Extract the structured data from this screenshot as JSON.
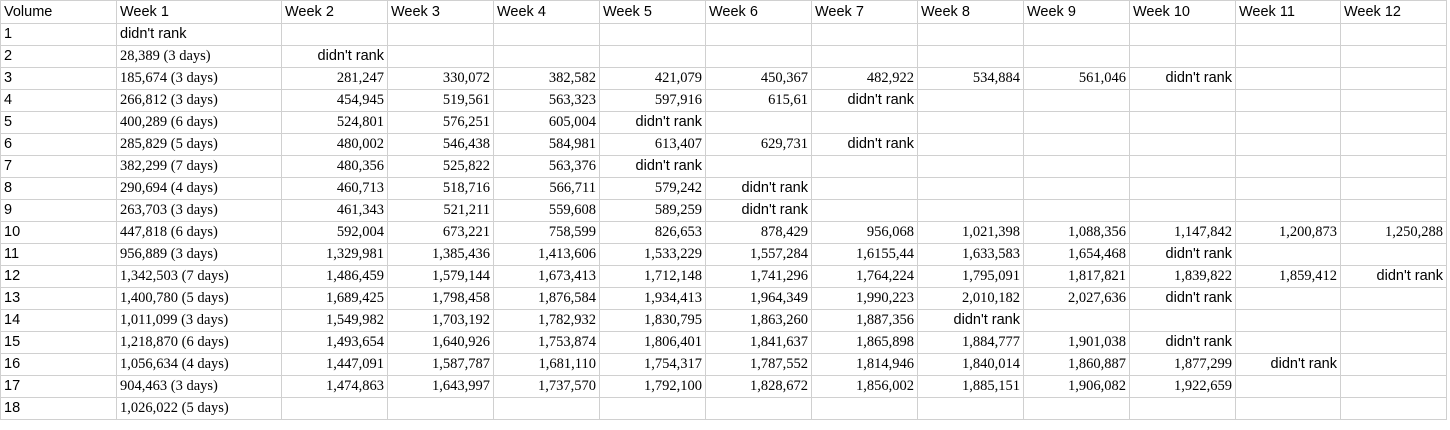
{
  "columns": [
    "Volume",
    "Week 1",
    "Week 2",
    "Week 3",
    "Week 4",
    "Week 5",
    "Week 6",
    "Week 7",
    "Week 8",
    "Week 9",
    "Week 10",
    "Week 11",
    "Week 12"
  ],
  "rows": [
    [
      "1",
      "didn't rank",
      "",
      "",
      "",
      "",
      "",
      "",
      "",
      "",
      "",
      "",
      ""
    ],
    [
      "2",
      "28,389 (3 days)",
      "didn't rank",
      "",
      "",
      "",
      "",
      "",
      "",
      "",
      "",
      "",
      ""
    ],
    [
      "3",
      "185,674 (3 days)",
      "281,247",
      "330,072",
      "382,582",
      "421,079",
      "450,367",
      "482,922",
      "534,884",
      "561,046",
      "didn't rank",
      "",
      ""
    ],
    [
      "4",
      "266,812 (3 days)",
      "454,945",
      "519,561",
      "563,323",
      "597,916",
      "615,61",
      "didn't rank",
      "",
      "",
      "",
      "",
      ""
    ],
    [
      "5",
      "400,289 (6 days)",
      "524,801",
      "576,251",
      "605,004",
      "didn't rank",
      "",
      "",
      "",
      "",
      "",
      "",
      ""
    ],
    [
      "6",
      "285,829 (5 days)",
      "480,002",
      "546,438",
      "584,981",
      "613,407",
      "629,731",
      "didn't rank",
      "",
      "",
      "",
      "",
      ""
    ],
    [
      "7",
      "382,299 (7 days)",
      "480,356",
      "525,822",
      "563,376",
      "didn't rank",
      "",
      "",
      "",
      "",
      "",
      "",
      ""
    ],
    [
      "8",
      "290,694 (4 days)",
      "460,713",
      "518,716",
      "566,711",
      "579,242",
      "didn't rank",
      "",
      "",
      "",
      "",
      "",
      ""
    ],
    [
      "9",
      "263,703 (3 days)",
      "461,343",
      "521,211",
      "559,608",
      "589,259",
      "didn't rank",
      "",
      "",
      "",
      "",
      "",
      ""
    ],
    [
      "10",
      "447,818 (6 days)",
      "592,004",
      "673,221",
      "758,599",
      "826,653",
      "878,429",
      "956,068",
      "1,021,398",
      "1,088,356",
      "1,147,842",
      "1,200,873",
      "1,250,288"
    ],
    [
      "11",
      "956,889 (3 days)",
      "1,329,981",
      "1,385,436",
      "1,413,606",
      "1,533,229",
      "1,557,284",
      "1,6155,44",
      "1,633,583",
      "1,654,468",
      "didn't rank",
      "",
      ""
    ],
    [
      "12",
      "1,342,503 (7 days)",
      "1,486,459",
      "1,579,144",
      "1,673,413",
      "1,712,148",
      "1,741,296",
      "1,764,224",
      "1,795,091",
      "1,817,821",
      "1,839,822",
      "1,859,412",
      "didn't rank"
    ],
    [
      "13",
      "1,400,780 (5 days)",
      "1,689,425",
      "1,798,458",
      "1,876,584",
      "1,934,413",
      "1,964,349",
      "1,990,223",
      "2,010,182",
      "2,027,636",
      "didn't rank",
      "",
      ""
    ],
    [
      "14",
      "1,011,099 (3 days)",
      "1,549,982",
      "1,703,192",
      "1,782,932",
      "1,830,795",
      "1,863,260",
      "1,887,356",
      "didn't rank",
      "",
      "",
      "",
      ""
    ],
    [
      "15",
      "1,218,870 (6 days)",
      "1,493,654",
      "1,640,926",
      "1,753,874",
      "1,806,401",
      "1,841,637",
      "1,865,898",
      "1,884,777",
      "1,901,038",
      "didn't rank",
      "",
      ""
    ],
    [
      "16",
      "1,056,634 (4 days)",
      "1,447,091",
      "1,587,787",
      "1,681,110",
      "1,754,317",
      "1,787,552",
      "1,814,946",
      "1,840,014",
      "1,860,887",
      "1,877,299",
      "didn't rank",
      ""
    ],
    [
      "17",
      "904,463 (3 days)",
      "1,474,863",
      "1,643,997",
      "1,737,570",
      "1,792,100",
      "1,828,672",
      "1,856,002",
      "1,885,151",
      "1,906,082",
      "1,922,659",
      "",
      ""
    ],
    [
      "18",
      "1,026,022 (5 days)",
      "",
      "",
      "",
      "",
      "",
      "",
      "",
      "",
      "",
      "",
      ""
    ]
  ]
}
